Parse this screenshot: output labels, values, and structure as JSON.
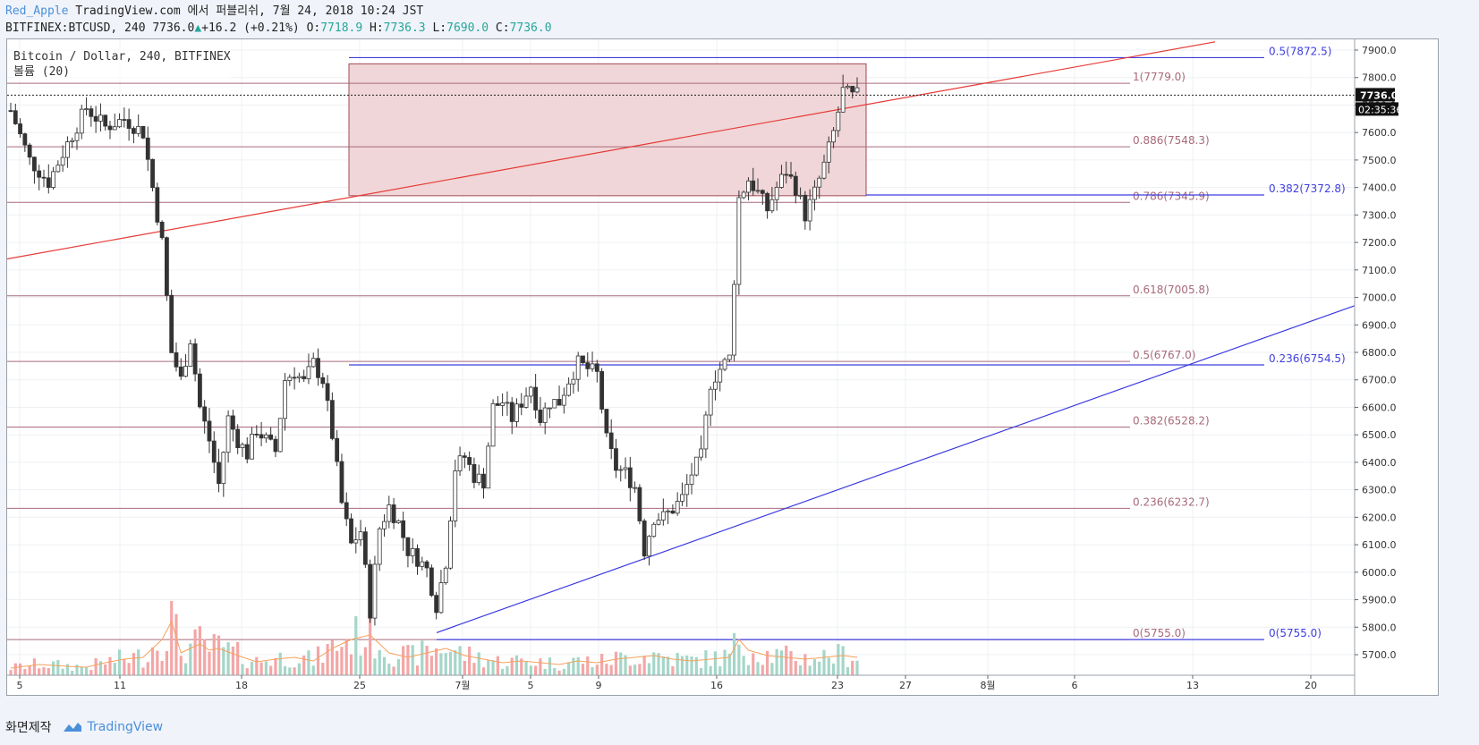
{
  "header": {
    "author": "Red_Apple",
    "subtitle": " TradingView.com 에서 퍼블리쉬, 7월 24, 2018 10:24 JST",
    "symbol_line": "BITFINEX:BTCUSD, 240 7736.0",
    "change": "+16.2 (+0.21%)",
    "o_label": "O:",
    "o": "7718.9",
    "h_label": "H:",
    "h": "7736.3",
    "l_label": "L:",
    "l": "7690.0",
    "c_label": "C:",
    "c": "7736.0"
  },
  "legend": {
    "title": "Bitcoin / Dollar, 240, BITFINEX",
    "volume": "볼륨 (20)"
  },
  "footer": {
    "label": "화면제작",
    "brand": "TradingView"
  },
  "colors": {
    "up": "#26a69a",
    "down": "#333333",
    "fib_red": "#a86a7a",
    "fib_blue": "#3f3fe0",
    "trend_red": "#e53935",
    "trend_blue": "#3a3ae0",
    "zone_fill": "#f0d6d8",
    "zone_stroke": "#a34a55"
  },
  "chart_data": {
    "type": "candlestick",
    "y_ticks": [
      5700,
      5800,
      5900,
      6000,
      6100,
      6200,
      6300,
      6400,
      6500,
      6600,
      6700,
      6800,
      6900,
      7000,
      7100,
      7200,
      7300,
      7400,
      7500,
      7600,
      7700,
      7800,
      7900
    ],
    "x_ticks": [
      "5",
      "11",
      "18",
      "25",
      "7월",
      "5",
      "9",
      "16",
      "23",
      "27",
      "8월",
      "6",
      "13",
      "20"
    ],
    "last_price_label": "7736.0",
    "countdown_label": "02:35:36",
    "fib_red": [
      {
        "label": "1(7779.0)",
        "value": 7779.0
      },
      {
        "label": "0.886(7548.3)",
        "value": 7548.3
      },
      {
        "label": "0.786(7345.9)",
        "value": 7345.9
      },
      {
        "label": "0.618(7005.8)",
        "value": 7005.8
      },
      {
        "label": "0.5(6767.0)",
        "value": 6767.0
      },
      {
        "label": "0.382(6528.2)",
        "value": 6528.2
      },
      {
        "label": "0.236(6232.7)",
        "value": 6232.7
      },
      {
        "label": "0(5755.0)",
        "value": 5755.0
      }
    ],
    "fib_blue": [
      {
        "label": "0.5(7872.5)",
        "value": 7872.5
      },
      {
        "label": "0.382(7372.8)",
        "value": 7372.8
      },
      {
        "label": "0.236(6754.5)",
        "value": 6754.5
      },
      {
        "label": "0(5755.0)",
        "value": 5755.0
      }
    ],
    "zone": {
      "top": 7850,
      "bottom": 7370,
      "from_tick": "25",
      "to_tick": "23"
    },
    "trendline_red": {
      "start_value": 7140,
      "end_value": 7930
    },
    "trendline_blue": {
      "start_value": 5780,
      "end_value": 6970
    },
    "price_path": [
      [
        0,
        7680
      ],
      [
        4,
        7500
      ],
      [
        8,
        7420
      ],
      [
        12,
        7560
      ],
      [
        16,
        7690
      ],
      [
        20,
        7620
      ],
      [
        24,
        7650
      ],
      [
        28,
        7600
      ],
      [
        30,
        7400
      ],
      [
        32,
        7200
      ],
      [
        34,
        6800
      ],
      [
        36,
        6700
      ],
      [
        38,
        6850
      ],
      [
        40,
        6600
      ],
      [
        42,
        6480
      ],
      [
        44,
        6320
      ],
      [
        46,
        6560
      ],
      [
        48,
        6480
      ],
      [
        50,
        6430
      ],
      [
        52,
        6520
      ],
      [
        54,
        6480
      ],
      [
        56,
        6440
      ],
      [
        58,
        6700
      ],
      [
        60,
        6730
      ],
      [
        62,
        6690
      ],
      [
        64,
        6760
      ],
      [
        66,
        6700
      ],
      [
        68,
        6500
      ],
      [
        70,
        6250
      ],
      [
        72,
        6100
      ],
      [
        74,
        6150
      ],
      [
        76,
        5860
      ],
      [
        78,
        6160
      ],
      [
        80,
        6240
      ],
      [
        82,
        6180
      ],
      [
        84,
        6080
      ],
      [
        86,
        6050
      ],
      [
        88,
        6010
      ],
      [
        90,
        5880
      ],
      [
        92,
        6040
      ],
      [
        94,
        6380
      ],
      [
        96,
        6420
      ],
      [
        98,
        6350
      ],
      [
        100,
        6330
      ],
      [
        102,
        6600
      ],
      [
        104,
        6620
      ],
      [
        106,
        6560
      ],
      [
        108,
        6620
      ],
      [
        110,
        6680
      ],
      [
        112,
        6560
      ],
      [
        114,
        6620
      ],
      [
        116,
        6620
      ],
      [
        118,
        6700
      ],
      [
        120,
        6760
      ],
      [
        122,
        6740
      ],
      [
        124,
        6720
      ],
      [
        126,
        6480
      ],
      [
        128,
        6380
      ],
      [
        130,
        6360
      ],
      [
        132,
        6310
      ],
      [
        134,
        6080
      ],
      [
        136,
        6200
      ],
      [
        138,
        6200
      ],
      [
        140,
        6230
      ],
      [
        142,
        6270
      ],
      [
        144,
        6360
      ],
      [
        146,
        6420
      ],
      [
        148,
        6690
      ],
      [
        150,
        6740
      ],
      [
        152,
        6780
      ],
      [
        154,
        7360
      ],
      [
        156,
        7430
      ],
      [
        158,
        7380
      ],
      [
        160,
        7320
      ],
      [
        162,
        7400
      ],
      [
        164,
        7460
      ],
      [
        166,
        7400
      ],
      [
        168,
        7300
      ],
      [
        170,
        7380
      ],
      [
        172,
        7480
      ],
      [
        174,
        7600
      ],
      [
        176,
        7750
      ],
      [
        178,
        7730
      ],
      [
        179,
        7736
      ]
    ],
    "volume_path": [
      [
        0,
        8
      ],
      [
        6,
        12
      ],
      [
        12,
        10
      ],
      [
        16,
        9
      ],
      [
        20,
        14
      ],
      [
        24,
        18
      ],
      [
        28,
        20
      ],
      [
        30,
        30
      ],
      [
        32,
        40
      ],
      [
        34,
        60
      ],
      [
        36,
        25
      ],
      [
        40,
        35
      ],
      [
        42,
        28
      ],
      [
        44,
        30
      ],
      [
        48,
        22
      ],
      [
        52,
        15
      ],
      [
        56,
        18
      ],
      [
        60,
        20
      ],
      [
        64,
        16
      ],
      [
        68,
        30
      ],
      [
        72,
        40
      ],
      [
        76,
        45
      ],
      [
        80,
        25
      ],
      [
        84,
        20
      ],
      [
        88,
        25
      ],
      [
        92,
        30
      ],
      [
        96,
        22
      ],
      [
        100,
        18
      ],
      [
        104,
        14
      ],
      [
        108,
        16
      ],
      [
        112,
        14
      ],
      [
        116,
        12
      ],
      [
        120,
        16
      ],
      [
        124,
        14
      ],
      [
        128,
        18
      ],
      [
        132,
        20
      ],
      [
        136,
        22
      ],
      [
        140,
        18
      ],
      [
        144,
        16
      ],
      [
        148,
        18
      ],
      [
        152,
        20
      ],
      [
        154,
        40
      ],
      [
        156,
        28
      ],
      [
        160,
        22
      ],
      [
        164,
        20
      ],
      [
        168,
        18
      ],
      [
        172,
        20
      ],
      [
        176,
        22
      ],
      [
        179,
        20
      ]
    ]
  }
}
